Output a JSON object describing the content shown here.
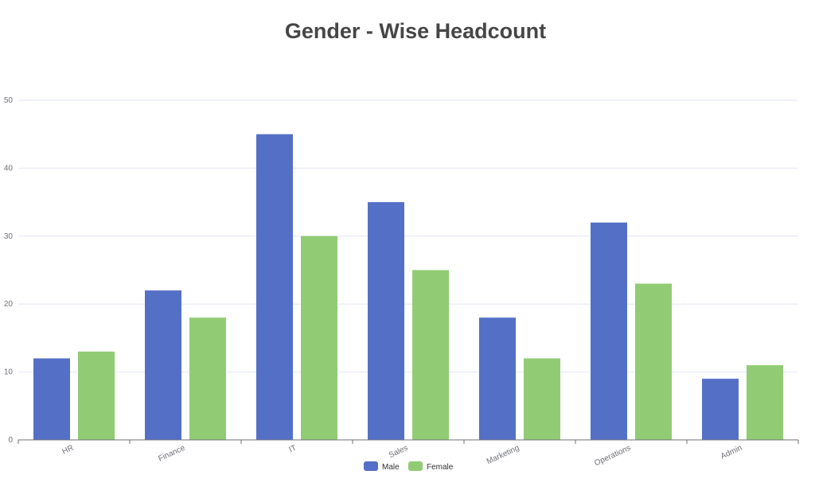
{
  "chart_data": {
    "type": "bar",
    "title": "Gender - Wise Headcount",
    "xlabel": "",
    "ylabel": "",
    "categories": [
      "HR",
      "Finance",
      "IT",
      "Sales",
      "Marketing",
      "Operations",
      "Admin"
    ],
    "series": [
      {
        "name": "Male",
        "values": [
          12,
          22,
          45,
          35,
          18,
          32,
          9
        ],
        "color": "#5470c6"
      },
      {
        "name": "Female",
        "values": [
          13,
          18,
          30,
          25,
          12,
          23,
          11
        ],
        "color": "#91cc75"
      }
    ],
    "ylim": [
      0,
      50
    ],
    "yticks": [
      0,
      10,
      20,
      30,
      40,
      50
    ],
    "grid": true,
    "legend": "bottom-center",
    "colors": {
      "grid": "#e0e6f1",
      "axis": "#6e7079",
      "title": "#464646"
    }
  }
}
